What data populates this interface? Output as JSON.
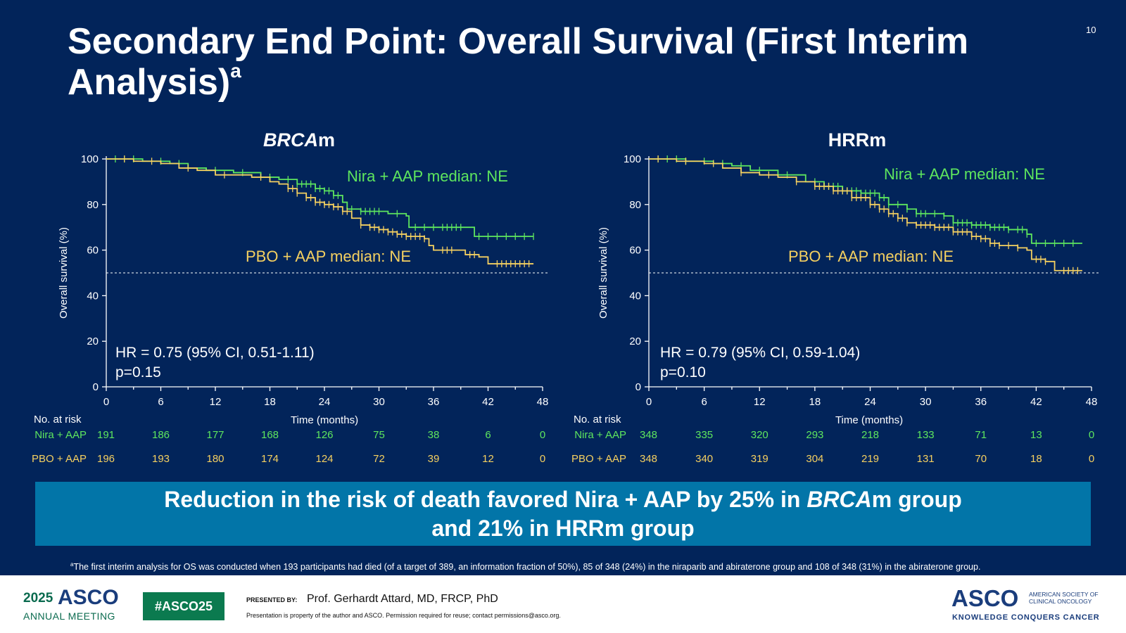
{
  "slide": {
    "title": "Secondary End Point: Overall Survival (First Interim Analysis)",
    "title_sup": "a",
    "slide_number": "10",
    "banner": {
      "line1_pre": "Reduction in the risk of death favored Nira + AAP by 25% in ",
      "line1_em": "BRCA",
      "line1_post": "m group",
      "line2": "and 21% in HRRm group"
    },
    "footnote_sup": "a",
    "footnote": "The first interim analysis for OS was conducted when 193 participants had died (of a target of 389, an information fraction of 50%), 85 of 348 (24%) in the niraparib and abiraterone group and 108 of 348 (31%) in the abiraterone group."
  },
  "footer": {
    "year": "2025",
    "org": "ASCO",
    "meeting": "ANNUAL MEETING",
    "hashtag": "#ASCO25",
    "presented_by": "PRESENTED BY:",
    "presenter": "Prof. Gerhardt Attard, MD, FRCP, PhD",
    "notice": "Presentation is property of the author and ASCO. Permission required for reuse; contact permissions@asco.org.",
    "logo": "ASCO",
    "society": "AMERICAN SOCIETY OF CLINICAL ONCOLOGY",
    "motto": "KNOWLEDGE CONQUERS CANCER"
  },
  "colors": {
    "background": "#02245a",
    "nira": "#5ee65e",
    "pbo": "#f5d060",
    "banner": "#0275a8",
    "axis": "#ffffff"
  },
  "chart_data": [
    {
      "type": "line",
      "subtype": "kaplan-meier",
      "title_em": "BRCA",
      "title_post": "m",
      "ylabel": "Overall survival (%)",
      "xlabel": "Time (months)",
      "xlim": [
        0,
        48
      ],
      "ylim": [
        0,
        100
      ],
      "xticks": [
        0,
        6,
        12,
        18,
        24,
        30,
        36,
        42,
        48
      ],
      "yticks": [
        0,
        20,
        40,
        60,
        80,
        100
      ],
      "reference_line_y": 50,
      "series": [
        {
          "name": "Nira + AAP",
          "color": "#5ee65e",
          "points": [
            [
              0,
              100
            ],
            [
              2,
              100
            ],
            [
              4,
              99
            ],
            [
              7,
              98
            ],
            [
              9,
              96
            ],
            [
              11,
              95
            ],
            [
              14,
              94
            ],
            [
              17,
              92
            ],
            [
              19,
              91
            ],
            [
              21,
              89
            ],
            [
              23,
              87
            ],
            [
              24,
              86
            ],
            [
              25,
              84
            ],
            [
              26,
              81
            ],
            [
              26.5,
              78
            ],
            [
              28,
              77
            ],
            [
              31,
              76
            ],
            [
              33,
              75
            ],
            [
              33.3,
              70
            ],
            [
              38,
              70
            ],
            [
              39,
              70
            ],
            [
              40.5,
              66
            ],
            [
              44,
              66
            ],
            [
              47,
              66
            ]
          ],
          "censor_x": [
            1,
            2,
            3,
            6,
            8,
            12,
            15,
            18,
            20,
            21,
            21.5,
            22,
            22.5,
            23,
            23.5,
            24,
            24.5,
            25,
            25.5,
            27,
            28,
            28.5,
            29,
            29.5,
            30,
            32,
            34,
            35,
            36,
            37,
            37.5,
            38,
            38.5,
            39,
            41,
            42,
            43,
            44,
            45,
            46,
            47
          ]
        },
        {
          "name": "PBO + AAP",
          "color": "#f5d060",
          "points": [
            [
              0,
              100
            ],
            [
              3,
              99
            ],
            [
              6,
              98
            ],
            [
              8,
              96
            ],
            [
              10,
              95
            ],
            [
              12,
              93
            ],
            [
              14,
              93
            ],
            [
              16,
              92
            ],
            [
              18,
              90
            ],
            [
              19,
              89
            ],
            [
              20,
              87
            ],
            [
              21,
              85
            ],
            [
              22,
              83
            ],
            [
              23,
              81
            ],
            [
              24,
              80
            ],
            [
              25,
              79
            ],
            [
              26,
              77
            ],
            [
              27,
              74
            ],
            [
              28,
              71
            ],
            [
              29,
              70
            ],
            [
              30,
              69
            ],
            [
              31,
              68
            ],
            [
              32,
              67
            ],
            [
              33,
              66
            ],
            [
              35,
              65
            ],
            [
              35.5,
              62
            ],
            [
              36,
              60
            ],
            [
              39,
              60
            ],
            [
              39.5,
              58
            ],
            [
              41,
              57
            ],
            [
              42,
              54
            ],
            [
              47,
              54
            ]
          ],
          "censor_x": [
            2,
            5,
            9,
            13,
            17,
            20,
            20.5,
            21,
            22,
            22.5,
            23,
            23.5,
            24,
            24.5,
            25,
            25.5,
            26,
            26.5,
            28,
            29,
            29.5,
            30,
            30.5,
            31,
            31.5,
            32,
            32.5,
            33,
            33.5,
            34,
            34.5,
            35,
            37,
            37.5,
            38,
            40,
            40.5,
            43,
            43.5,
            44,
            44.5,
            45,
            45.5,
            46,
            46.5
          ]
        }
      ],
      "annotations": {
        "nira_median": "Nira + AAP median: NE",
        "pbo_median": "PBO + AAP median: NE",
        "hr": "HR = 0.75 (95% CI, 0.51-1.11)",
        "p": "p=0.15"
      },
      "risk_table": {
        "header": "No. at risk",
        "rows": [
          {
            "label": "Nira + AAP",
            "color": "#5ee65e",
            "values": [
              "191",
              "186",
              "177",
              "168",
              "126",
              "75",
              "38",
              "6",
              "0"
            ]
          },
          {
            "label": "PBO + AAP",
            "color": "#f5d060",
            "values": [
              "196",
              "193",
              "180",
              "174",
              "124",
              "72",
              "39",
              "12",
              "0"
            ]
          }
        ]
      }
    },
    {
      "type": "line",
      "subtype": "kaplan-meier",
      "title_em": "",
      "title_post": "HRRm",
      "ylabel": "Overall survival (%)",
      "xlabel": "Time (months)",
      "xlim": [
        0,
        48
      ],
      "ylim": [
        0,
        100
      ],
      "xticks": [
        0,
        6,
        12,
        18,
        24,
        30,
        36,
        42,
        48
      ],
      "yticks": [
        0,
        20,
        40,
        60,
        80,
        100
      ],
      "reference_line_y": 50,
      "series": [
        {
          "name": "Nira + AAP",
          "color": "#5ee65e",
          "points": [
            [
              0,
              100
            ],
            [
              2,
              100
            ],
            [
              4,
              99
            ],
            [
              7,
              98
            ],
            [
              9,
              97
            ],
            [
              11,
              95
            ],
            [
              14,
              93
            ],
            [
              17,
              90
            ],
            [
              19,
              88
            ],
            [
              21,
              86
            ],
            [
              23,
              85
            ],
            [
              25,
              83
            ],
            [
              26,
              80
            ],
            [
              28,
              78
            ],
            [
              29,
              76
            ],
            [
              32,
              75
            ],
            [
              33,
              72
            ],
            [
              35,
              71
            ],
            [
              37,
              70
            ],
            [
              39,
              69
            ],
            [
              41,
              67
            ],
            [
              41.5,
              63
            ],
            [
              47,
              63
            ]
          ],
          "censor_x": [
            1,
            2,
            3,
            4,
            6,
            8,
            10,
            12,
            15,
            18,
            19,
            19.5,
            20,
            20.5,
            21,
            21.5,
            22,
            22.5,
            23,
            23.5,
            24,
            24.5,
            25,
            25.5,
            26,
            27,
            28,
            29,
            29.5,
            30,
            31,
            32,
            33,
            33.5,
            34,
            34.5,
            35,
            35.5,
            36,
            36.5,
            37,
            37.5,
            38,
            38.5,
            39,
            40,
            40.5,
            41,
            42,
            43,
            44,
            45,
            46
          ]
        },
        {
          "name": "PBO + AAP",
          "color": "#f5d060",
          "points": [
            [
              0,
              100
            ],
            [
              3,
              99
            ],
            [
              6,
              98
            ],
            [
              8,
              96
            ],
            [
              10,
              94
            ],
            [
              12,
              93
            ],
            [
              14,
              92
            ],
            [
              16,
              90
            ],
            [
              18,
              88
            ],
            [
              20,
              86
            ],
            [
              22,
              83
            ],
            [
              24,
              80
            ],
            [
              25,
              78
            ],
            [
              26,
              76
            ],
            [
              27,
              74
            ],
            [
              28,
              72
            ],
            [
              29,
              71
            ],
            [
              31,
              70
            ],
            [
              33,
              68
            ],
            [
              35,
              66
            ],
            [
              36,
              65
            ],
            [
              37,
              63
            ],
            [
              38,
              62
            ],
            [
              40,
              61
            ],
            [
              41,
              60
            ],
            [
              41.5,
              56
            ],
            [
              43,
              55
            ],
            [
              44,
              51
            ],
            [
              47,
              51
            ]
          ],
          "censor_x": [
            1,
            4,
            7,
            10,
            13,
            16,
            18,
            18.5,
            19,
            19.5,
            20,
            20.5,
            21,
            21.5,
            22,
            22.5,
            23,
            23.5,
            24,
            24.5,
            25,
            25.5,
            26,
            26.5,
            27,
            27.5,
            28,
            29,
            29.5,
            30,
            30.5,
            31,
            31.5,
            32,
            32.5,
            33,
            33.5,
            34,
            34.5,
            35,
            35.5,
            36,
            36.5,
            37,
            37.5,
            38,
            39,
            40,
            42,
            42.5,
            43,
            45,
            45.5,
            46,
            46.5
          ]
        }
      ],
      "annotations": {
        "nira_median": "Nira + AAP median: NE",
        "pbo_median": "PBO + AAP median: NE",
        "hr": "HR = 0.79 (95% CI, 0.59-1.04)",
        "p": "p=0.10"
      },
      "risk_table": {
        "header": "No. at risk",
        "rows": [
          {
            "label": "Nira + AAP",
            "color": "#5ee65e",
            "values": [
              "348",
              "335",
              "320",
              "293",
              "218",
              "133",
              "71",
              "13",
              "0"
            ]
          },
          {
            "label": "PBO + AAP",
            "color": "#f5d060",
            "values": [
              "348",
              "340",
              "319",
              "304",
              "219",
              "131",
              "70",
              "18",
              "0"
            ]
          }
        ]
      }
    }
  ]
}
